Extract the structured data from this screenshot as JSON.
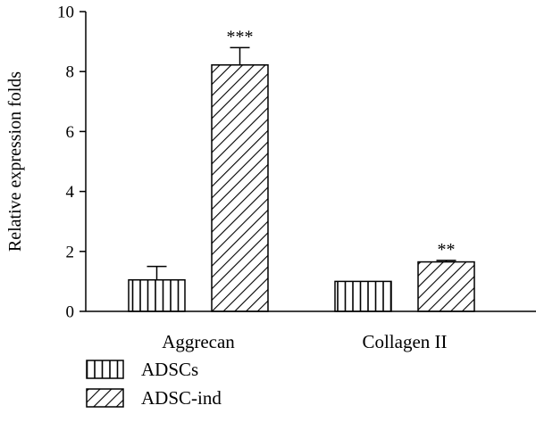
{
  "chart_data": {
    "type": "bar",
    "categories": [
      "Aggrecan",
      "Collagen II"
    ],
    "series": [
      {
        "name": "ADSCs",
        "values": [
          1.05,
          1.0
        ],
        "errors": [
          0.45,
          0.0
        ],
        "pattern": "vertical-lines"
      },
      {
        "name": "ADSC-ind",
        "values": [
          8.22,
          1.65
        ],
        "errors": [
          0.58,
          0.05
        ],
        "pattern": "diagonal-lines"
      }
    ],
    "significance": [
      {
        "category": "Aggrecan",
        "series": "ADSC-ind",
        "label": "***"
      },
      {
        "category": "Collagen II",
        "series": "ADSC-ind",
        "label": "**"
      }
    ],
    "ylabel": "Relative expression folds",
    "xlabel": "",
    "ylim": [
      0,
      10
    ],
    "yticks": [
      0,
      2,
      4,
      6,
      8,
      10
    ],
    "grid": false,
    "legend_position": "bottom-left",
    "colors": {
      "stroke": "#000000",
      "fill": "#ffffff"
    }
  }
}
